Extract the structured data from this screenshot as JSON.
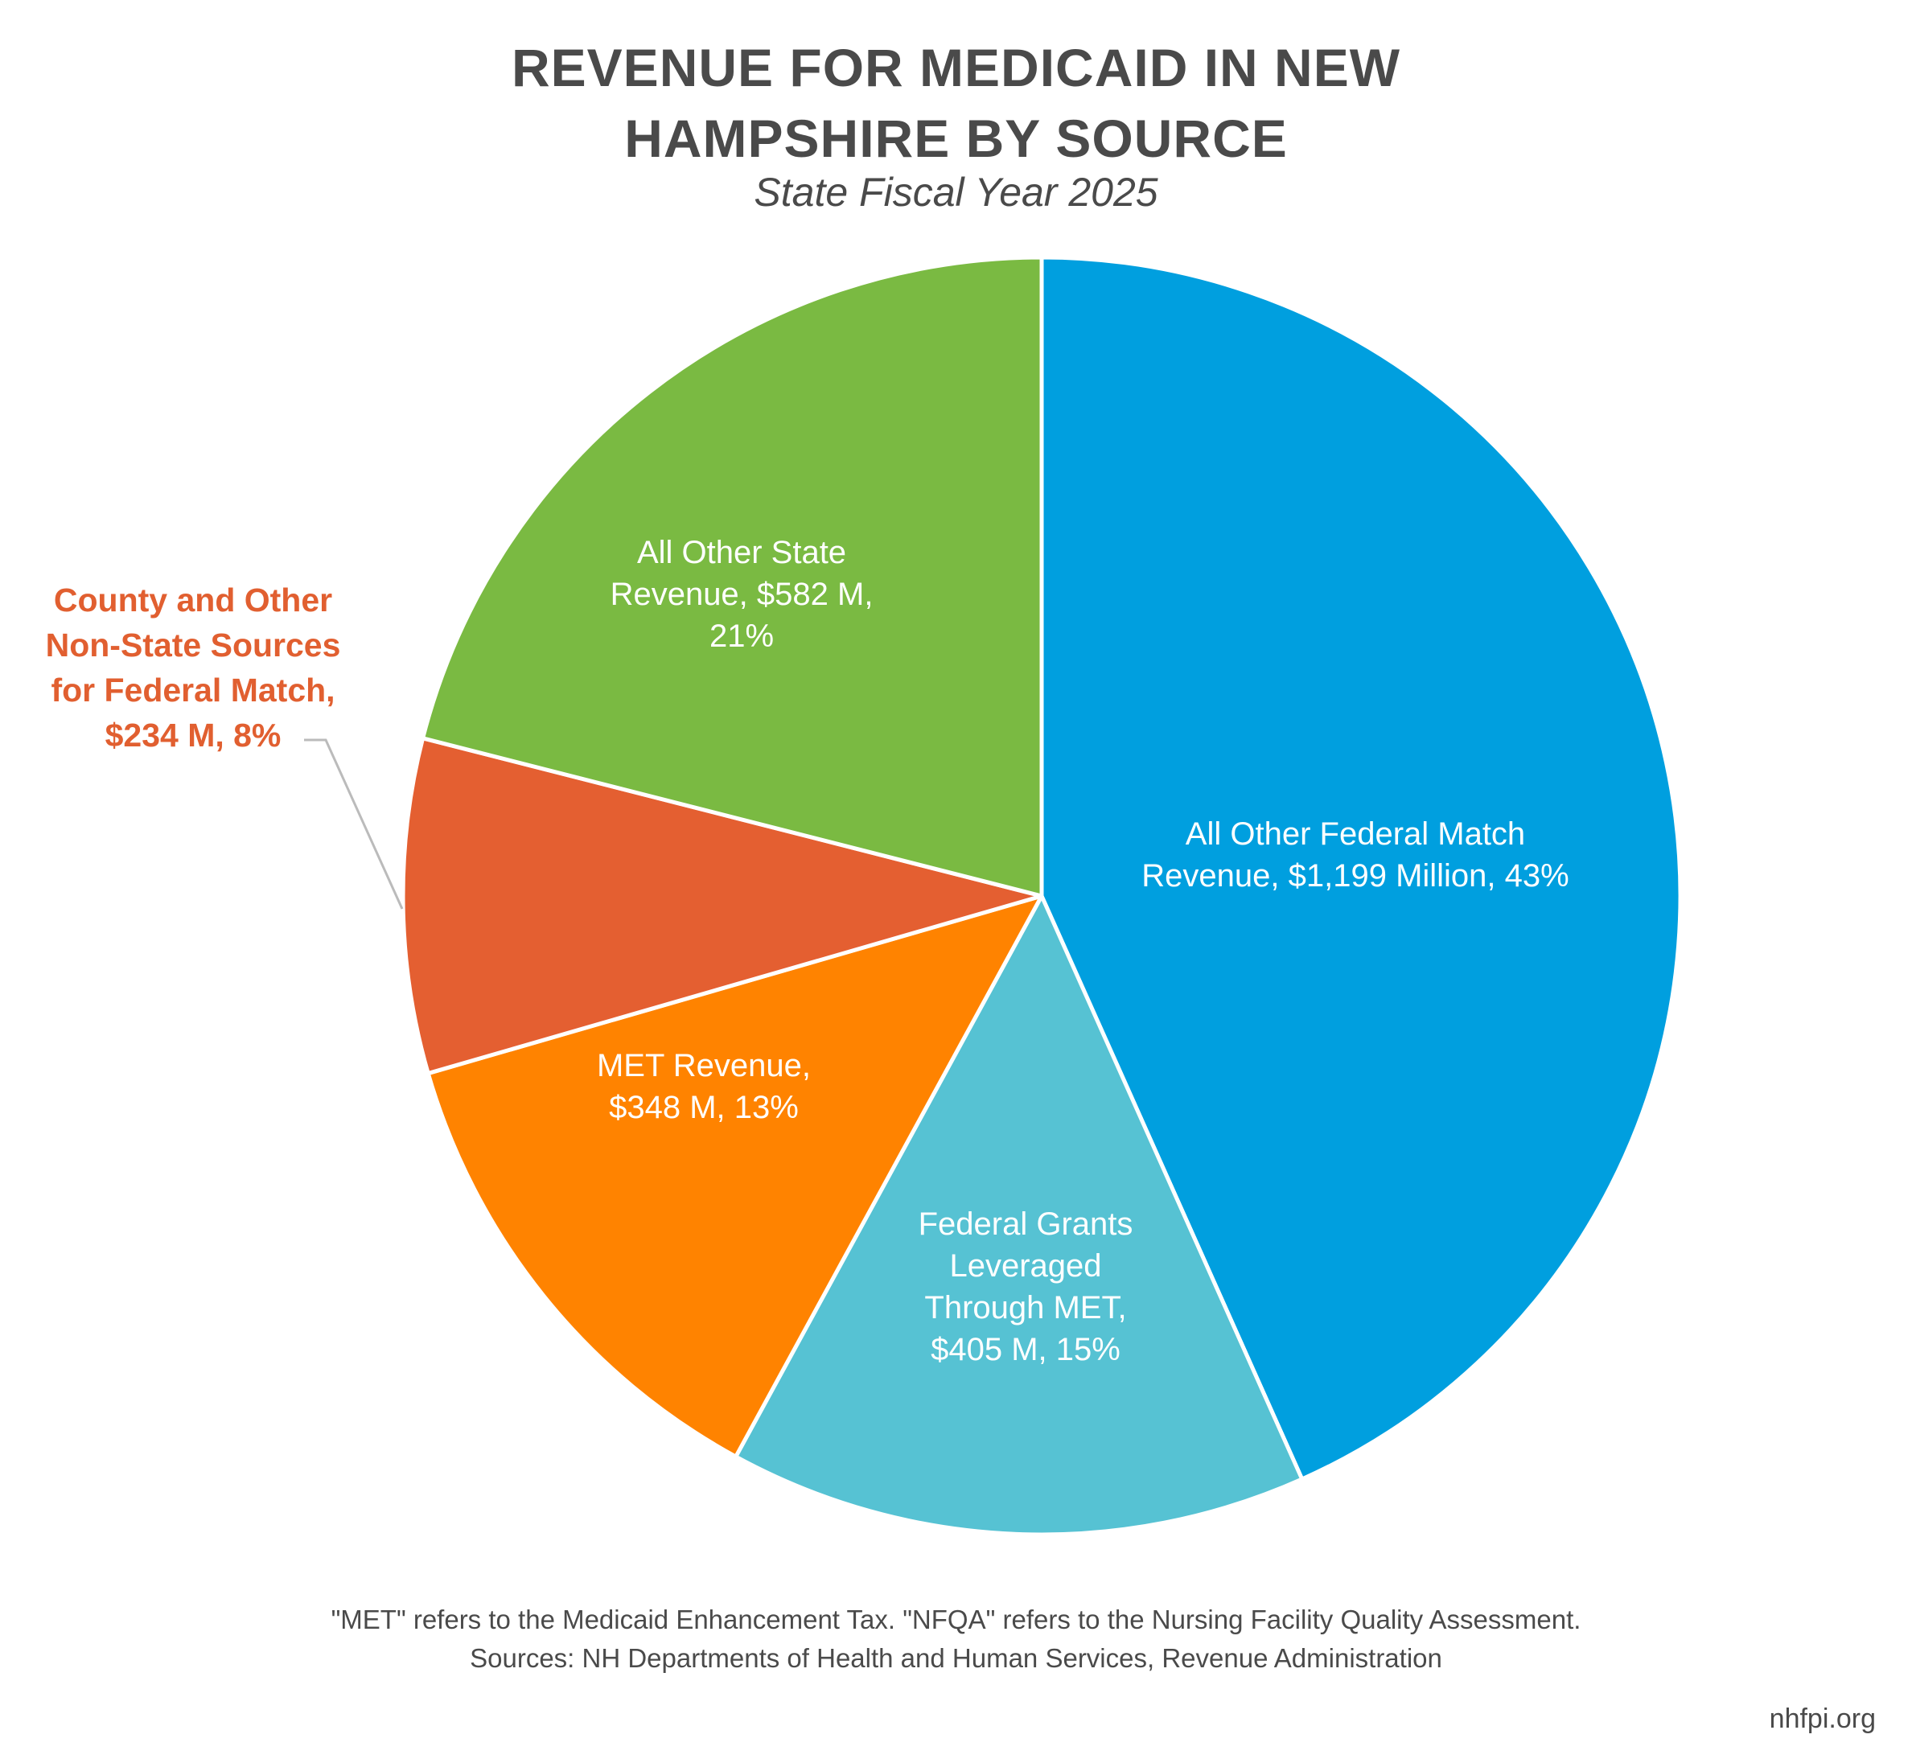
{
  "chart_data": {
    "type": "pie",
    "title": "REVENUE FOR MEDICAID IN NEW HAMPSHIRE BY SOURCE",
    "title_lines": [
      "REVENUE FOR MEDICAID IN NEW",
      "HAMPSHIRE BY SOURCE"
    ],
    "subtitle": "State Fiscal Year 2025",
    "start_angle": "12 o'clock",
    "direction": "clockwise",
    "unit": "$ Millions",
    "slices": [
      {
        "name": "All Other Federal Match Revenue",
        "value": 1199,
        "percent": 43,
        "color": "#009fdf",
        "label_lines": [
          "All Other Federal Match",
          "Revenue, $1,199 Million, 43%"
        ],
        "label_position": "inside"
      },
      {
        "name": "Federal Grants Leveraged Through MET",
        "value": 405,
        "percent": 15,
        "color": "#56c2d3",
        "label_lines": [
          "Federal Grants",
          "Leveraged",
          "Through MET,",
          "$405 M, 15%"
        ],
        "label_position": "inside"
      },
      {
        "name": "MET Revenue",
        "value": 348,
        "percent": 13,
        "color": "#ff8300",
        "label_lines": [
          "MET Revenue,",
          "$348 M, 13%"
        ],
        "label_position": "inside"
      },
      {
        "name": "County and Other Non-State Sources for Federal Match",
        "value": 234,
        "percent": 8,
        "color": "#e45f31",
        "label_lines": [
          "County and Other",
          "Non-State Sources",
          "for Federal Match,",
          "$234 M, 8%"
        ],
        "label_position": "outside-left"
      },
      {
        "name": "All Other State Revenue",
        "value": 582,
        "percent": 21,
        "color": "#7aba42",
        "label_lines": [
          "All Other State",
          "Revenue, $582 M,",
          "21%"
        ],
        "label_position": "inside"
      }
    ]
  },
  "footnote": {
    "line1": "\"MET\" refers to the Medicaid Enhancement Tax. \"NFQA\" refers to the Nursing Facility Quality Assessment.",
    "line2": "Sources: NH Departments of Health and Human Services, Revenue Administration"
  },
  "credit": "nhfpi.org",
  "colors": {
    "text": "#4a4a4a",
    "external_label": "#e15f30",
    "leader_line": "#bbbbbb"
  }
}
